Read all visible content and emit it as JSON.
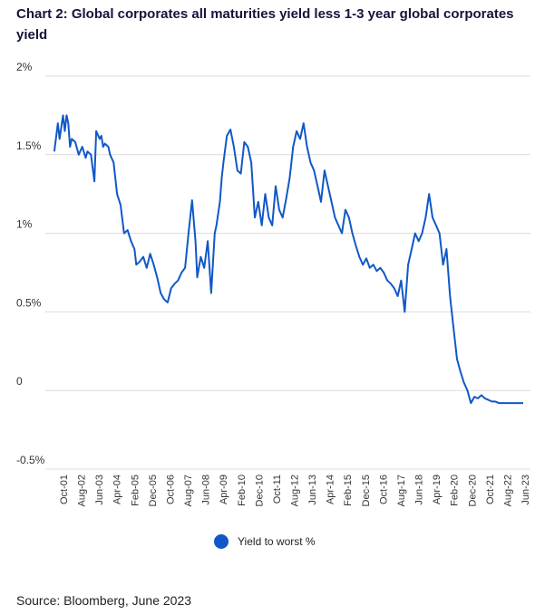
{
  "title": "Chart 2: Global corporates all maturities yield less 1-3 year global corporates yield",
  "source": "Source: Bloomberg, June 2023",
  "chart_data": {
    "type": "line",
    "title": "Chart 2: Global corporates all maturities yield less 1-3 year global corporates yield",
    "xlabel": "",
    "ylabel": "",
    "ylim": [
      -0.5,
      2
    ],
    "y_ticks": [
      2,
      1.5,
      1,
      0.5,
      0,
      -0.5
    ],
    "y_tick_labels": [
      "2%",
      "1.5%",
      "1%",
      "0.5%",
      "0",
      "-0.5%"
    ],
    "x_range": [
      "2000-12",
      "2023-06"
    ],
    "x_tick_labels": [
      "Oct-01",
      "Aug-02",
      "Jun-03",
      "Apr-04",
      "Feb-05",
      "Dec-05",
      "Oct-06",
      "Aug-07",
      "Jun-08",
      "Apr-09",
      "Feb-10",
      "Dec-10",
      "Oct-11",
      "Aug-12",
      "Jun-13",
      "Apr-14",
      "Feb-15",
      "Dec-15",
      "Oct-16",
      "Aug-17",
      "Jun-18",
      "Apr-19",
      "Feb-20",
      "Dec-20",
      "Oct-21",
      "Aug-22",
      "Jun-23"
    ],
    "grid": true,
    "legend_position": "bottom",
    "color": "#1158c7",
    "series": [
      {
        "name": "Yield to worst %",
        "x": [
          "2001-01",
          "2001-03",
          "2001-04",
          "2001-06",
          "2001-07",
          "2001-08",
          "2001-09",
          "2001-10",
          "2001-11",
          "2002-01",
          "2002-03",
          "2002-05",
          "2002-07",
          "2002-08",
          "2002-10",
          "2002-12",
          "2003-01",
          "2003-03",
          "2003-04",
          "2003-05",
          "2003-06",
          "2003-08",
          "2003-09",
          "2003-11",
          "2004-01",
          "2004-03",
          "2004-05",
          "2004-07",
          "2004-09",
          "2004-11",
          "2004-12",
          "2005-02",
          "2005-04",
          "2005-06",
          "2005-08",
          "2005-10",
          "2005-12",
          "2006-02",
          "2006-04",
          "2006-06",
          "2006-08",
          "2006-10",
          "2006-12",
          "2007-02",
          "2007-04",
          "2007-06",
          "2007-08",
          "2007-10",
          "2007-11",
          "2008-01",
          "2008-03",
          "2008-05",
          "2008-07",
          "2008-09",
          "2008-10",
          "2008-12",
          "2009-01",
          "2009-02",
          "2009-04",
          "2009-06",
          "2009-08",
          "2009-10",
          "2009-12",
          "2010-02",
          "2010-04",
          "2010-06",
          "2010-08",
          "2010-10",
          "2010-12",
          "2011-02",
          "2011-04",
          "2011-06",
          "2011-08",
          "2011-10",
          "2011-12",
          "2012-02",
          "2012-04",
          "2012-06",
          "2012-08",
          "2012-10",
          "2012-12",
          "2013-02",
          "2013-04",
          "2013-06",
          "2013-08",
          "2013-10",
          "2013-12",
          "2014-02",
          "2014-04",
          "2014-06",
          "2014-08",
          "2014-10",
          "2014-12",
          "2015-02",
          "2015-04",
          "2015-06",
          "2015-08",
          "2015-10",
          "2015-12",
          "2016-02",
          "2016-04",
          "2016-06",
          "2016-08",
          "2016-10",
          "2016-12",
          "2017-02",
          "2017-04",
          "2017-06",
          "2017-08",
          "2017-10",
          "2017-12",
          "2018-02",
          "2018-04",
          "2018-06",
          "2018-08",
          "2018-10",
          "2018-12",
          "2019-02",
          "2019-04",
          "2019-06",
          "2019-08",
          "2019-10",
          "2019-12",
          "2020-02",
          "2020-04",
          "2020-06",
          "2020-08",
          "2020-10",
          "2020-12",
          "2021-02",
          "2021-04",
          "2021-06",
          "2021-08",
          "2021-10",
          "2021-12",
          "2022-02",
          "2022-04",
          "2022-06",
          "2022-08",
          "2022-10",
          "2022-12",
          "2023-02",
          "2023-04",
          "2023-06"
        ],
        "y": [
          1.52,
          1.7,
          1.6,
          1.75,
          1.65,
          1.75,
          1.7,
          1.55,
          1.6,
          1.58,
          1.5,
          1.55,
          1.48,
          1.52,
          1.5,
          1.33,
          1.65,
          1.6,
          1.62,
          1.55,
          1.57,
          1.55,
          1.5,
          1.45,
          1.25,
          1.18,
          1.0,
          1.02,
          0.95,
          0.9,
          0.8,
          0.82,
          0.85,
          0.78,
          0.87,
          0.8,
          0.72,
          0.62,
          0.58,
          0.56,
          0.65,
          0.68,
          0.7,
          0.75,
          0.78,
          1.0,
          1.21,
          0.95,
          0.72,
          0.85,
          0.78,
          0.95,
          0.62,
          1.0,
          1.05,
          1.2,
          1.35,
          1.45,
          1.62,
          1.66,
          1.55,
          1.4,
          1.38,
          1.58,
          1.55,
          1.45,
          1.1,
          1.2,
          1.05,
          1.25,
          1.1,
          1.05,
          1.3,
          1.15,
          1.1,
          1.22,
          1.35,
          1.55,
          1.65,
          1.6,
          1.7,
          1.55,
          1.45,
          1.4,
          1.3,
          1.2,
          1.4,
          1.3,
          1.2,
          1.1,
          1.05,
          1.0,
          1.15,
          1.1,
          1.0,
          0.92,
          0.85,
          0.8,
          0.84,
          0.78,
          0.8,
          0.76,
          0.78,
          0.75,
          0.7,
          0.68,
          0.65,
          0.6,
          0.7,
          0.5,
          0.8,
          0.9,
          1.0,
          0.95,
          1.0,
          1.1,
          1.25,
          1.1,
          1.05,
          1.0,
          0.8,
          0.9,
          0.6,
          0.4,
          0.2,
          0.12,
          0.05,
          0.0,
          -0.08,
          -0.04,
          -0.05,
          -0.03,
          -0.05,
          -0.06,
          -0.07,
          -0.07,
          -0.08,
          -0.08,
          -0.08,
          -0.08,
          -0.08,
          -0.08,
          -0.08,
          -0.08
        ]
      }
    ]
  }
}
